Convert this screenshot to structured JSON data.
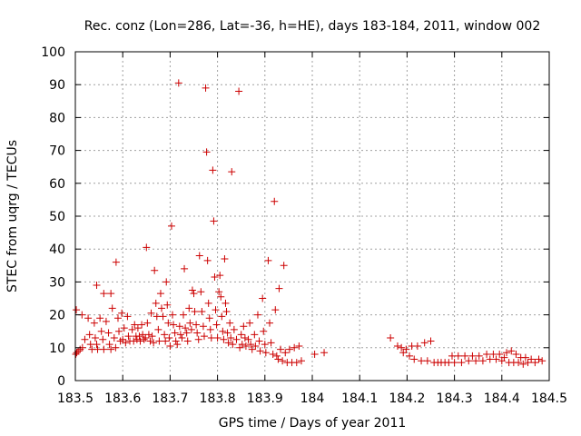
{
  "chart_data": {
    "type": "scatter",
    "title": "Rec. conz (Lon=286, Lat=-36, h=HE), days 183-184, 2011, window 002",
    "xlabel": "GPS time / Days of year 2011",
    "ylabel": "STEC from uqrg / TECUs",
    "xlim": [
      183.5,
      184.5
    ],
    "ylim": [
      0,
      100
    ],
    "x_ticks": [
      "183.5",
      "183.6",
      "183.7",
      "183.8",
      "183.9",
      "184",
      "184.1",
      "184.2",
      "184.3",
      "184.4",
      "184.5"
    ],
    "y_ticks": [
      "0",
      "10",
      "20",
      "30",
      "40",
      "50",
      "60",
      "70",
      "80",
      "90",
      "100"
    ],
    "grid": true,
    "marker": "plus",
    "color": "#cc0000",
    "points": [
      [
        183.501,
        8.0
      ],
      [
        183.503,
        8.5
      ],
      [
        183.506,
        9.0
      ],
      [
        183.51,
        9.5
      ],
      [
        183.515,
        10.0
      ],
      [
        183.502,
        21.5
      ],
      [
        183.514,
        20.0
      ],
      [
        183.52,
        12.5
      ],
      [
        183.527,
        19.0
      ],
      [
        183.53,
        14.0
      ],
      [
        183.532,
        11.0
      ],
      [
        183.535,
        9.5
      ],
      [
        183.54,
        17.5
      ],
      [
        183.542,
        13.0
      ],
      [
        183.545,
        11.0
      ],
      [
        183.547,
        9.5
      ],
      [
        183.545,
        29.0
      ],
      [
        183.552,
        19.0
      ],
      [
        183.555,
        15.0
      ],
      [
        183.558,
        12.5
      ],
      [
        183.56,
        9.5
      ],
      [
        183.56,
        26.5
      ],
      [
        183.565,
        18.0
      ],
      [
        183.57,
        14.5
      ],
      [
        183.572,
        11.0
      ],
      [
        183.575,
        26.5
      ],
      [
        183.575,
        9.5
      ],
      [
        183.578,
        22.0
      ],
      [
        183.582,
        13.0
      ],
      [
        183.585,
        10.0
      ],
      [
        183.586,
        36.0
      ],
      [
        183.59,
        19.0
      ],
      [
        183.592,
        15.0
      ],
      [
        183.595,
        12.0
      ],
      [
        183.598,
        20.5
      ],
      [
        183.6,
        12.5
      ],
      [
        183.603,
        16.0
      ],
      [
        183.606,
        11.5
      ],
      [
        183.61,
        19.5
      ],
      [
        183.612,
        13.5
      ],
      [
        183.615,
        12.0
      ],
      [
        183.62,
        15.5
      ],
      [
        183.623,
        12.0
      ],
      [
        183.625,
        17.0
      ],
      [
        183.628,
        13.5
      ],
      [
        183.63,
        12.5
      ],
      [
        183.632,
        16.0
      ],
      [
        183.635,
        13.5
      ],
      [
        183.637,
        12.0
      ],
      [
        183.64,
        17.0
      ],
      [
        183.642,
        14.0
      ],
      [
        183.645,
        12.5
      ],
      [
        183.648,
        13.0
      ],
      [
        183.65,
        40.5
      ],
      [
        183.652,
        17.5
      ],
      [
        183.655,
        14.0
      ],
      [
        183.658,
        12.0
      ],
      [
        183.66,
        20.5
      ],
      [
        183.662,
        13.5
      ],
      [
        183.665,
        11.5
      ],
      [
        183.667,
        33.5
      ],
      [
        183.67,
        23.5
      ],
      [
        183.672,
        19.5
      ],
      [
        183.675,
        15.5
      ],
      [
        183.677,
        12.0
      ],
      [
        183.68,
        26.5
      ],
      [
        183.682,
        22.0
      ],
      [
        183.685,
        19.5
      ],
      [
        183.688,
        14.0
      ],
      [
        183.69,
        12.0
      ],
      [
        183.692,
        30.0
      ],
      [
        183.694,
        23.0
      ],
      [
        183.696,
        17.5
      ],
      [
        183.698,
        13.0
      ],
      [
        183.7,
        10.5
      ],
      [
        183.703,
        47.0
      ],
      [
        183.705,
        20.0
      ],
      [
        183.707,
        17.0
      ],
      [
        183.71,
        14.5
      ],
      [
        183.712,
        12.0
      ],
      [
        183.715,
        11.0
      ],
      [
        183.718,
        90.5
      ],
      [
        183.72,
        16.5
      ],
      [
        183.722,
        14.0
      ],
      [
        183.725,
        13.0
      ],
      [
        183.728,
        20.0
      ],
      [
        183.73,
        34.0
      ],
      [
        183.732,
        16.0
      ],
      [
        183.735,
        14.5
      ],
      [
        183.737,
        12.0
      ],
      [
        183.74,
        22.0
      ],
      [
        183.742,
        17.5
      ],
      [
        183.745,
        15.5
      ],
      [
        183.747,
        27.5
      ],
      [
        183.75,
        26.5
      ],
      [
        183.752,
        21.0
      ],
      [
        183.755,
        17.0
      ],
      [
        183.757,
        14.5
      ],
      [
        183.76,
        12.5
      ],
      [
        183.762,
        38.0
      ],
      [
        183.765,
        27.0
      ],
      [
        183.767,
        21.0
      ],
      [
        183.77,
        16.5
      ],
      [
        183.772,
        13.5
      ],
      [
        183.775,
        89.0
      ],
      [
        183.777,
        69.5
      ],
      [
        183.779,
        36.5
      ],
      [
        183.781,
        23.5
      ],
      [
        183.783,
        19.0
      ],
      [
        183.785,
        15.5
      ],
      [
        183.787,
        13.0
      ],
      [
        183.79,
        64.0
      ],
      [
        183.792,
        48.5
      ],
      [
        183.794,
        31.5
      ],
      [
        183.796,
        21.5
      ],
      [
        183.798,
        17.0
      ],
      [
        183.8,
        13.0
      ],
      [
        183.803,
        27.0
      ],
      [
        183.805,
        32.0
      ],
      [
        183.807,
        25.5
      ],
      [
        183.809,
        19.5
      ],
      [
        183.811,
        15.0
      ],
      [
        183.813,
        12.5
      ],
      [
        183.815,
        37.0
      ],
      [
        183.817,
        23.5
      ],
      [
        183.819,
        21.0
      ],
      [
        183.821,
        14.5
      ],
      [
        183.823,
        11.5
      ],
      [
        183.826,
        17.5
      ],
      [
        183.828,
        13.0
      ],
      [
        183.83,
        63.5
      ],
      [
        183.832,
        11.0
      ],
      [
        183.835,
        15.5
      ],
      [
        183.84,
        12.5
      ],
      [
        183.845,
        88.0
      ],
      [
        183.847,
        10.0
      ],
      [
        183.85,
        14.0
      ],
      [
        183.852,
        11.0
      ],
      [
        183.855,
        16.5
      ],
      [
        183.858,
        13.0
      ],
      [
        183.86,
        10.5
      ],
      [
        183.865,
        12.5
      ],
      [
        183.868,
        17.5
      ],
      [
        183.87,
        11.0
      ],
      [
        183.873,
        9.5
      ],
      [
        183.878,
        14.0
      ],
      [
        183.88,
        10.5
      ],
      [
        183.885,
        20.0
      ],
      [
        183.888,
        12.0
      ],
      [
        183.89,
        9.0
      ],
      [
        183.895,
        25.0
      ],
      [
        183.897,
        15.0
      ],
      [
        183.9,
        11.0
      ],
      [
        183.902,
        8.5
      ],
      [
        183.907,
        36.5
      ],
      [
        183.91,
        17.5
      ],
      [
        183.913,
        11.5
      ],
      [
        183.917,
        8.0
      ],
      [
        183.92,
        54.5
      ],
      [
        183.922,
        21.5
      ],
      [
        183.925,
        7.5
      ],
      [
        183.928,
        6.5
      ],
      [
        183.93,
        28.0
      ],
      [
        183.933,
        9.5
      ],
      [
        183.937,
        6.0
      ],
      [
        183.94,
        35.0
      ],
      [
        183.943,
        8.5
      ],
      [
        183.947,
        5.5
      ],
      [
        183.952,
        9.5
      ],
      [
        183.957,
        5.5
      ],
      [
        183.962,
        10.0
      ],
      [
        183.967,
        5.5
      ],
      [
        183.972,
        10.5
      ],
      [
        183.977,
        6.0
      ],
      [
        184.005,
        8.0
      ],
      [
        184.025,
        8.5
      ],
      [
        184.165,
        13.0
      ],
      [
        184.18,
        10.5
      ],
      [
        184.188,
        10.0
      ],
      [
        184.192,
        8.5
      ],
      [
        184.198,
        9.5
      ],
      [
        184.205,
        7.5
      ],
      [
        184.21,
        10.5
      ],
      [
        184.215,
        6.5
      ],
      [
        184.222,
        10.5
      ],
      [
        184.23,
        6.0
      ],
      [
        184.237,
        11.5
      ],
      [
        184.243,
        6.0
      ],
      [
        184.25,
        12.0
      ],
      [
        184.257,
        5.5
      ],
      [
        184.265,
        5.5
      ],
      [
        184.272,
        5.5
      ],
      [
        184.28,
        5.5
      ],
      [
        184.288,
        5.5
      ],
      [
        184.295,
        7.5
      ],
      [
        184.3,
        5.5
      ],
      [
        184.308,
        7.5
      ],
      [
        184.315,
        5.5
      ],
      [
        184.322,
        7.5
      ],
      [
        184.33,
        6.0
      ],
      [
        184.338,
        7.5
      ],
      [
        184.345,
        6.0
      ],
      [
        184.352,
        7.5
      ],
      [
        184.36,
        6.0
      ],
      [
        184.368,
        8.0
      ],
      [
        184.375,
        6.5
      ],
      [
        184.382,
        8.0
      ],
      [
        184.388,
        6.5
      ],
      [
        184.395,
        8.0
      ],
      [
        184.4,
        6.0
      ],
      [
        184.405,
        7.0
      ],
      [
        184.41,
        8.5
      ],
      [
        184.415,
        5.5
      ],
      [
        184.42,
        9.0
      ],
      [
        184.425,
        5.5
      ],
      [
        184.43,
        8.0
      ],
      [
        184.435,
        5.5
      ],
      [
        184.44,
        7.0
      ],
      [
        184.445,
        5.0
      ],
      [
        184.45,
        7.0
      ],
      [
        184.455,
        5.5
      ],
      [
        184.462,
        6.5
      ],
      [
        184.47,
        5.5
      ],
      [
        184.478,
        6.5
      ],
      [
        184.485,
        6.0
      ]
    ]
  }
}
